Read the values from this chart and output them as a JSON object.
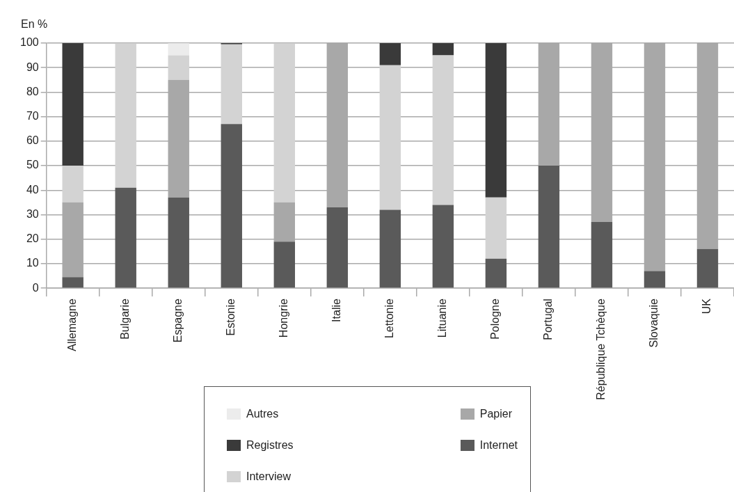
{
  "chart_data": {
    "type": "bar",
    "stacked": true,
    "ylabel": "En %",
    "categories": [
      "Allemagne",
      "Bulgarie",
      "Espagne",
      "Estonie",
      "Hongrie",
      "Italie",
      "Lettonie",
      "Lituanie",
      "Pologne",
      "Portugal",
      "République Tchèque",
      "Slovaquie",
      "UK"
    ],
    "series": [
      {
        "name": "Internet",
        "color": "#5a5a5a",
        "values": [
          4.5,
          41,
          37,
          67,
          19,
          33,
          32,
          34,
          12,
          50,
          27,
          7,
          16
        ]
      },
      {
        "name": "Papier",
        "color": "#a8a8a8",
        "values": [
          30.5,
          null,
          48,
          null,
          16,
          67,
          null,
          null,
          null,
          50,
          73,
          93,
          84
        ]
      },
      {
        "name": "Interview",
        "color": "#d3d3d3",
        "values": [
          15,
          59,
          10,
          32.5,
          65,
          null,
          59,
          61,
          25,
          null,
          null,
          null,
          null
        ]
      },
      {
        "name": "Registres",
        "color": "#3a3a3a",
        "values": [
          50,
          null,
          null,
          0.5,
          null,
          null,
          9,
          5,
          63,
          null,
          null,
          null,
          null
        ]
      },
      {
        "name": "Autres",
        "color": "#ececec",
        "values": [
          null,
          null,
          5,
          null,
          null,
          null,
          null,
          null,
          null,
          null,
          null,
          null,
          null
        ]
      }
    ],
    "ylim": [
      0,
      100
    ],
    "yticks": [
      0,
      10,
      20,
      30,
      40,
      50,
      60,
      70,
      80,
      90,
      100
    ],
    "grid": "y",
    "legend": "bottom"
  }
}
